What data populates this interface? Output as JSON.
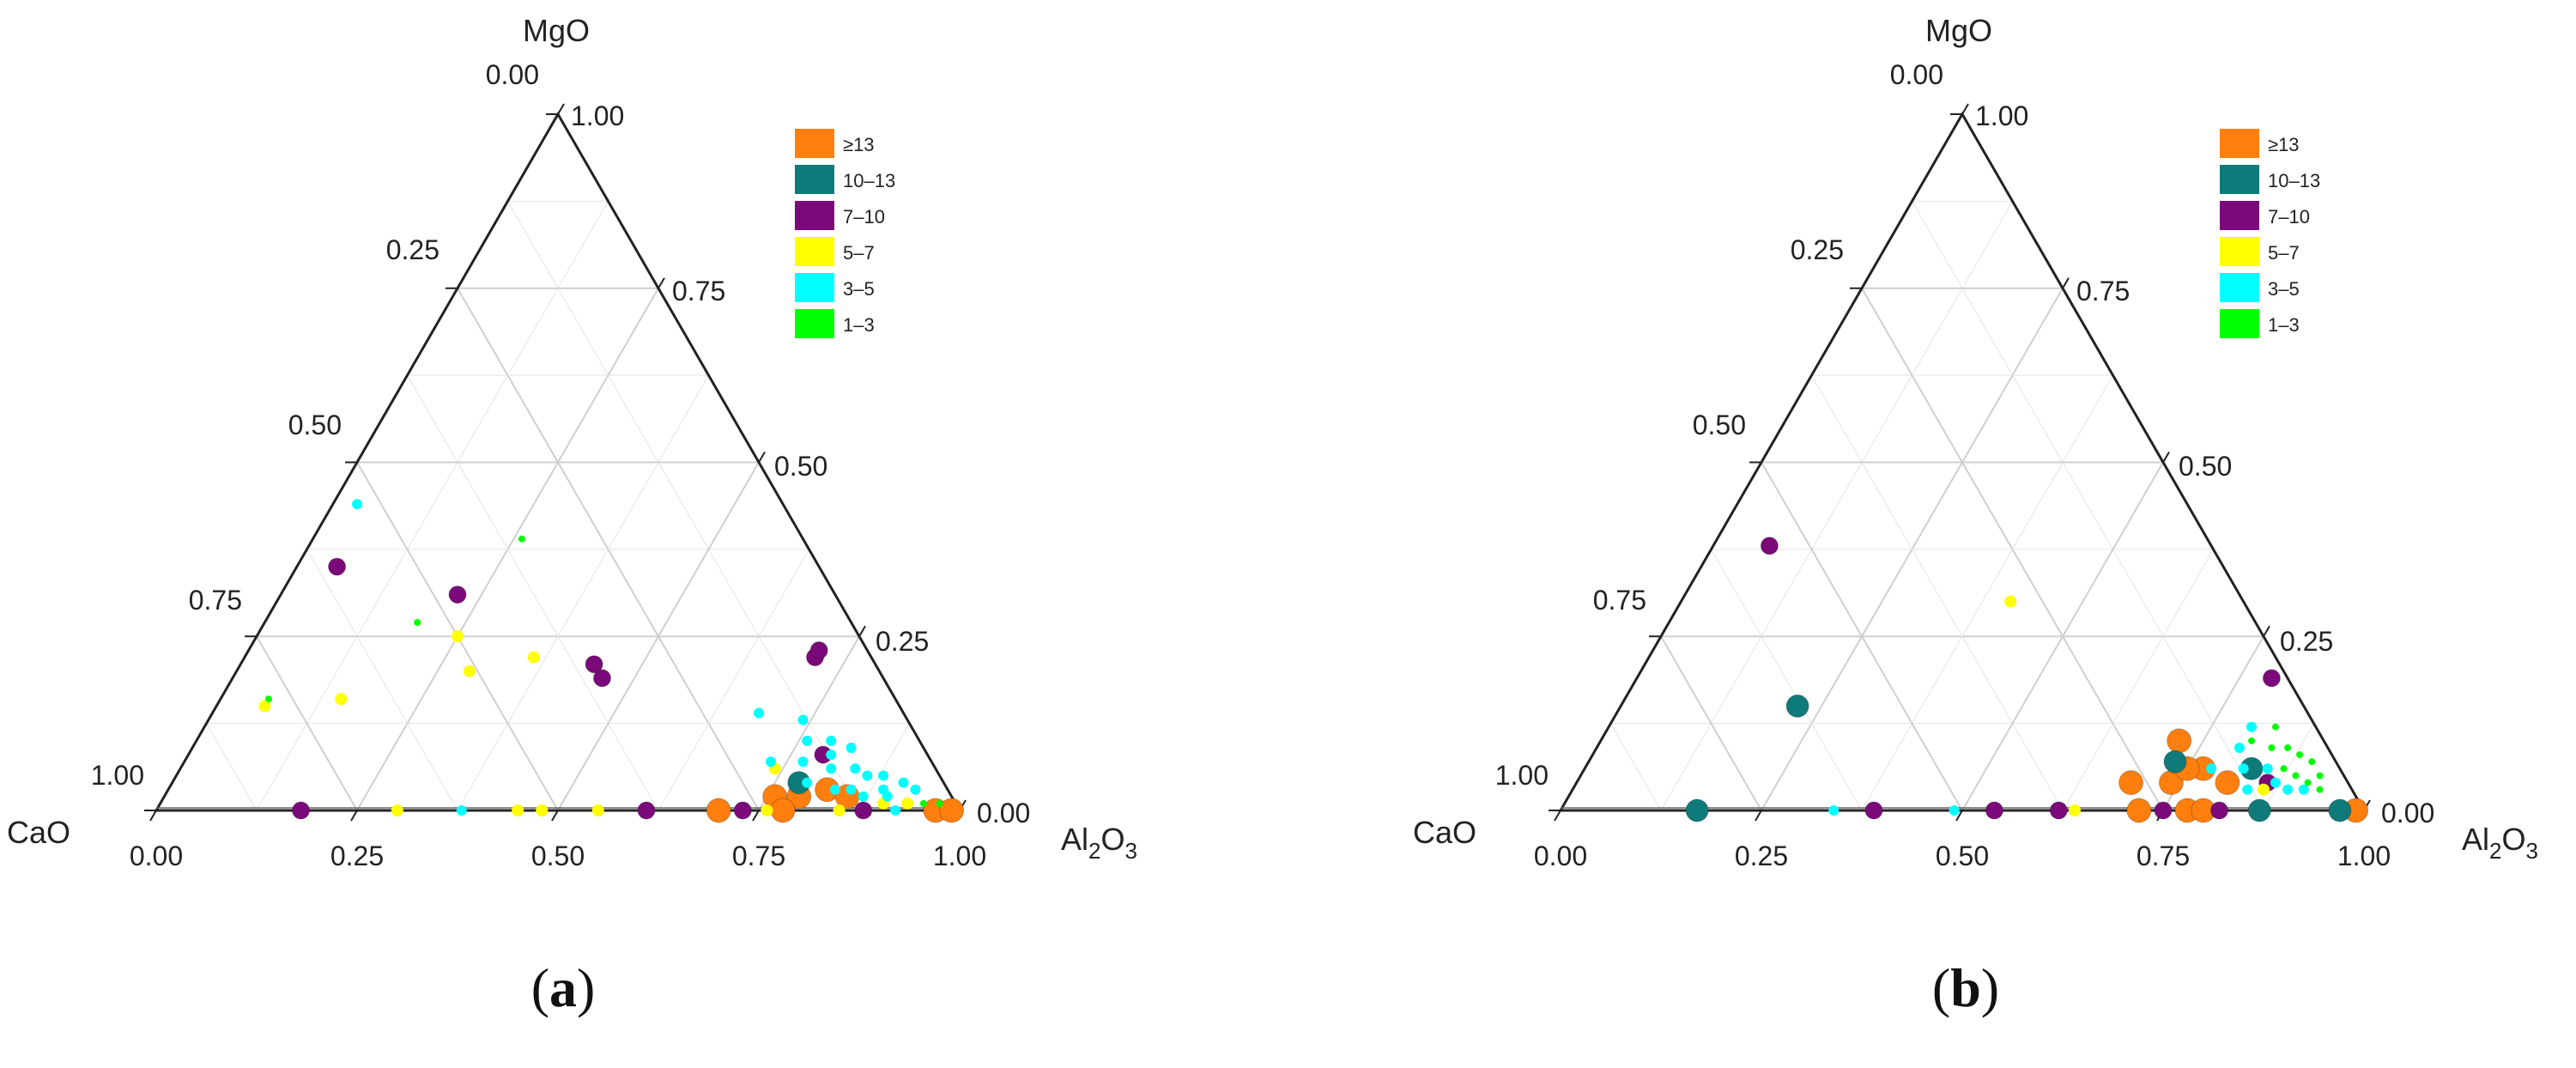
{
  "chart_data": [
    {
      "type": "scatter",
      "subtype": "ternary",
      "panel_label": "(a)",
      "panel_letter": "a",
      "axes": {
        "top": "MgO",
        "left": "CaO",
        "right_base": "Al",
        "right_sub1": "2",
        "right_mid": "O",
        "right_sub2": "3"
      },
      "ticks": [
        "0.00",
        "0.25",
        "0.50",
        "0.75",
        "1.00"
      ],
      "grid": true,
      "legend": {
        "placement": "top-right",
        "items": [
          {
            "label": "≥13",
            "color": "#ff7f0e"
          },
          {
            "label": "10–13",
            "color": "#0f7a7a"
          },
          {
            "label": "7–10",
            "color": "#7a0a7a"
          },
          {
            "label": "5–7",
            "color": "#ffff00"
          },
          {
            "label": "3–5",
            "color": "#00ffff"
          },
          {
            "label": "1–3",
            "color": "#00ff00"
          }
        ]
      },
      "points": [
        {
          "a": 0.03,
          "c": 0.53,
          "m": 0.44,
          "cls": "3–5"
        },
        {
          "a": 0.26,
          "c": 0.35,
          "m": 0.39,
          "cls": "1–3"
        },
        {
          "a": 0.05,
          "c": 0.6,
          "m": 0.35,
          "cls": "7–10"
        },
        {
          "a": 0.22,
          "c": 0.47,
          "m": 0.31,
          "cls": "7–10"
        },
        {
          "a": 0.19,
          "c": 0.54,
          "m": 0.27,
          "cls": "1–3"
        },
        {
          "a": 0.25,
          "c": 0.5,
          "m": 0.25,
          "cls": "5–7"
        },
        {
          "a": 0.36,
          "c": 0.42,
          "m": 0.22,
          "cls": "5–7"
        },
        {
          "a": 0.29,
          "c": 0.51,
          "m": 0.2,
          "cls": "5–7"
        },
        {
          "a": 0.44,
          "c": 0.35,
          "m": 0.21,
          "cls": "7–10"
        },
        {
          "a": 0.46,
          "c": 0.35,
          "m": 0.19,
          "cls": "7–10"
        },
        {
          "a": 0.06,
          "c": 0.78,
          "m": 0.16,
          "cls": "1–3"
        },
        {
          "a": 0.06,
          "c": 0.79,
          "m": 0.15,
          "cls": "5–7"
        },
        {
          "a": 0.15,
          "c": 0.69,
          "m": 0.16,
          "cls": "5–7"
        },
        {
          "a": 0.71,
          "c": 0.07,
          "m": 0.22,
          "cls": "7–10"
        },
        {
          "a": 0.71,
          "c": 0.06,
          "m": 0.23,
          "cls": "7–10"
        },
        {
          "a": 0.68,
          "c": 0.18,
          "m": 0.14,
          "cls": "3–5"
        },
        {
          "a": 0.74,
          "c": 0.13,
          "m": 0.13,
          "cls": "3–5"
        },
        {
          "a": 0.76,
          "c": 0.14,
          "m": 0.1,
          "cls": "3–5"
        },
        {
          "a": 0.79,
          "c": 0.11,
          "m": 0.1,
          "cls": "3–5"
        },
        {
          "a": 0.8,
          "c": 0.12,
          "m": 0.08,
          "cls": "3–5"
        },
        {
          "a": 0.82,
          "c": 0.09,
          "m": 0.09,
          "cls": "3–5"
        },
        {
          "a": 0.84,
          "c": 0.1,
          "m": 0.06,
          "cls": "3–5"
        },
        {
          "a": 0.86,
          "c": 0.09,
          "m": 0.05,
          "cls": "3–5"
        },
        {
          "a": 0.88,
          "c": 0.07,
          "m": 0.05,
          "cls": "3–5"
        },
        {
          "a": 0.89,
          "c": 0.08,
          "m": 0.03,
          "cls": "3–5"
        },
        {
          "a": 0.91,
          "c": 0.05,
          "m": 0.04,
          "cls": "3–5"
        },
        {
          "a": 0.93,
          "c": 0.04,
          "m": 0.03,
          "cls": "3–5"
        },
        {
          "a": 0.85,
          "c": 0.12,
          "m": 0.03,
          "cls": "3–5"
        },
        {
          "a": 0.83,
          "c": 0.14,
          "m": 0.03,
          "cls": "3–5"
        },
        {
          "a": 0.79,
          "c": 0.17,
          "m": 0.04,
          "cls": "3–5"
        },
        {
          "a": 0.87,
          "c": 0.11,
          "m": 0.02,
          "cls": "3–5"
        },
        {
          "a": 0.81,
          "c": 0.13,
          "m": 0.06,
          "cls": "3–5"
        },
        {
          "a": 0.77,
          "c": 0.16,
          "m": 0.07,
          "cls": "3–5"
        },
        {
          "a": 0.73,
          "c": 0.2,
          "m": 0.07,
          "cls": "3–5"
        },
        {
          "a": 0.9,
          "c": 0.08,
          "m": 0.02,
          "cls": "3–5"
        },
        {
          "a": 0.78,
          "c": 0.18,
          "m": 0.04,
          "cls": "10–13"
        },
        {
          "a": 0.79,
          "c": 0.13,
          "m": 0.08,
          "cls": "7–10"
        },
        {
          "a": 0.74,
          "c": 0.2,
          "m": 0.06,
          "cls": "5–7"
        },
        {
          "a": 0.82,
          "c": 0.15,
          "m": 0.03,
          "cls": "≥13"
        },
        {
          "a": 0.85,
          "c": 0.13,
          "m": 0.02,
          "cls": "≥13"
        },
        {
          "a": 0.79,
          "c": 0.19,
          "m": 0.02,
          "cls": "≥13"
        },
        {
          "a": 0.76,
          "c": 0.22,
          "m": 0.02,
          "cls": "≥13"
        },
        {
          "a": 0.9,
          "c": 0.09,
          "m": 0.01,
          "cls": "5–7"
        },
        {
          "a": 0.93,
          "c": 0.06,
          "m": 0.01,
          "cls": "5–7"
        },
        {
          "a": 0.95,
          "c": 0.04,
          "m": 0.01,
          "cls": "1–3"
        },
        {
          "a": 0.97,
          "c": 0.02,
          "m": 0.01,
          "cls": "1–3"
        },
        {
          "a": 0.18,
          "c": 0.82,
          "m": 0.0,
          "cls": "7–10"
        },
        {
          "a": 0.3,
          "c": 0.7,
          "m": 0.0,
          "cls": "5–7"
        },
        {
          "a": 0.38,
          "c": 0.62,
          "m": 0.0,
          "cls": "3–5"
        },
        {
          "a": 0.45,
          "c": 0.55,
          "m": 0.0,
          "cls": "5–7"
        },
        {
          "a": 0.48,
          "c": 0.52,
          "m": 0.0,
          "cls": "5–7"
        },
        {
          "a": 0.55,
          "c": 0.45,
          "m": 0.0,
          "cls": "5–7"
        },
        {
          "a": 0.61,
          "c": 0.39,
          "m": 0.0,
          "cls": "7–10"
        },
        {
          "a": 0.7,
          "c": 0.3,
          "m": 0.0,
          "cls": "≥13"
        },
        {
          "a": 0.73,
          "c": 0.27,
          "m": 0.0,
          "cls": "7–10"
        },
        {
          "a": 0.76,
          "c": 0.24,
          "m": 0.0,
          "cls": "5–7"
        },
        {
          "a": 0.78,
          "c": 0.22,
          "m": 0.0,
          "cls": "≥13"
        },
        {
          "a": 0.85,
          "c": 0.15,
          "m": 0.0,
          "cls": "5–7"
        },
        {
          "a": 0.88,
          "c": 0.12,
          "m": 0.0,
          "cls": "7–10"
        },
        {
          "a": 0.92,
          "c": 0.08,
          "m": 0.0,
          "cls": "3–5"
        },
        {
          "a": 0.97,
          "c": 0.03,
          "m": 0.0,
          "cls": "≥13"
        },
        {
          "a": 0.99,
          "c": 0.01,
          "m": 0.0,
          "cls": "≥13"
        }
      ]
    },
    {
      "type": "scatter",
      "subtype": "ternary",
      "panel_label": "(b)",
      "panel_letter": "b",
      "axes": {
        "top": "MgO",
        "left": "CaO",
        "right_base": "Al",
        "right_sub1": "2",
        "right_mid": "O",
        "right_sub2": "3"
      },
      "ticks": [
        "0.00",
        "0.25",
        "0.50",
        "0.75",
        "1.00"
      ],
      "grid": true,
      "legend": {
        "placement": "top-right",
        "items": [
          {
            "label": "≥13",
            "color": "#ff7f0e"
          },
          {
            "label": "10–13",
            "color": "#0f7a7a"
          },
          {
            "label": "7–10",
            "color": "#7a0a7a"
          },
          {
            "label": "5–7",
            "color": "#ffff00"
          },
          {
            "label": "3–5",
            "color": "#00ffff"
          },
          {
            "label": "1–3",
            "color": "#00ff00"
          }
        ]
      },
      "points": [
        {
          "a": 0.07,
          "c": 0.55,
          "m": 0.38,
          "cls": "7–10"
        },
        {
          "a": 0.41,
          "c": 0.29,
          "m": 0.3,
          "cls": "5–7"
        },
        {
          "a": 0.22,
          "c": 0.63,
          "m": 0.15,
          "cls": "10–13"
        },
        {
          "a": 0.79,
          "c": 0.02,
          "m": 0.19,
          "cls": "7–10"
        },
        {
          "a": 0.72,
          "c": 0.18,
          "m": 0.1,
          "cls": "≥13"
        },
        {
          "a": 0.73,
          "c": 0.2,
          "m": 0.07,
          "cls": "10–13"
        },
        {
          "a": 0.77,
          "c": 0.17,
          "m": 0.06,
          "cls": "≥13"
        },
        {
          "a": 0.69,
          "c": 0.27,
          "m": 0.04,
          "cls": "≥13"
        },
        {
          "a": 0.74,
          "c": 0.22,
          "m": 0.04,
          "cls": "≥13"
        },
        {
          "a": 0.81,
          "c": 0.15,
          "m": 0.04,
          "cls": "≥13"
        },
        {
          "a": 0.8,
          "c": 0.11,
          "m": 0.09,
          "cls": "3–5"
        },
        {
          "a": 0.82,
          "c": 0.12,
          "m": 0.06,
          "cls": "3–5"
        },
        {
          "a": 0.85,
          "c": 0.09,
          "m": 0.06,
          "cls": "3–5"
        },
        {
          "a": 0.87,
          "c": 0.09,
          "m": 0.04,
          "cls": "3–5"
        },
        {
          "a": 0.84,
          "c": 0.13,
          "m": 0.03,
          "cls": "3–5"
        },
        {
          "a": 0.78,
          "c": 0.16,
          "m": 0.06,
          "cls": "3–5"
        },
        {
          "a": 0.89,
          "c": 0.08,
          "m": 0.03,
          "cls": "3–5"
        },
        {
          "a": 0.91,
          "c": 0.06,
          "m": 0.03,
          "cls": "3–5"
        },
        {
          "a": 0.8,
          "c": 0.08,
          "m": 0.12,
          "cls": "3–5"
        },
        {
          "a": 0.83,
          "c": 0.05,
          "m": 0.12,
          "cls": "1–3"
        },
        {
          "a": 0.86,
          "c": 0.05,
          "m": 0.09,
          "cls": "1–3"
        },
        {
          "a": 0.88,
          "c": 0.04,
          "m": 0.08,
          "cls": "1–3"
        },
        {
          "a": 0.9,
          "c": 0.03,
          "m": 0.07,
          "cls": "1–3"
        },
        {
          "a": 0.84,
          "c": 0.07,
          "m": 0.09,
          "cls": "1–3"
        },
        {
          "a": 0.87,
          "c": 0.07,
          "m": 0.06,
          "cls": "1–3"
        },
        {
          "a": 0.92,
          "c": 0.03,
          "m": 0.05,
          "cls": "1–3"
        },
        {
          "a": 0.93,
          "c": 0.04,
          "m": 0.03,
          "cls": "1–3"
        },
        {
          "a": 0.81,
          "c": 0.09,
          "m": 0.1,
          "cls": "1–3"
        },
        {
          "a": 0.89,
          "c": 0.06,
          "m": 0.05,
          "cls": "1–3"
        },
        {
          "a": 0.91,
          "c": 0.05,
          "m": 0.04,
          "cls": "1–3"
        },
        {
          "a": 0.86,
          "c": 0.11,
          "m": 0.03,
          "cls": "5–7"
        },
        {
          "a": 0.83,
          "c": 0.11,
          "m": 0.06,
          "cls": "10–13"
        },
        {
          "a": 0.86,
          "c": 0.1,
          "m": 0.04,
          "cls": "7–10"
        },
        {
          "a": 0.75,
          "c": 0.19,
          "m": 0.06,
          "cls": "≥13"
        },
        {
          "a": 0.17,
          "c": 0.83,
          "m": 0.0,
          "cls": "10–13"
        },
        {
          "a": 0.34,
          "c": 0.66,
          "m": 0.0,
          "cls": "3–5"
        },
        {
          "a": 0.39,
          "c": 0.61,
          "m": 0.0,
          "cls": "7–10"
        },
        {
          "a": 0.49,
          "c": 0.51,
          "m": 0.0,
          "cls": "3–5"
        },
        {
          "a": 0.54,
          "c": 0.46,
          "m": 0.0,
          "cls": "7–10"
        },
        {
          "a": 0.62,
          "c": 0.38,
          "m": 0.0,
          "cls": "7–10"
        },
        {
          "a": 0.64,
          "c": 0.36,
          "m": 0.0,
          "cls": "5–7"
        },
        {
          "a": 0.72,
          "c": 0.28,
          "m": 0.0,
          "cls": "≥13"
        },
        {
          "a": 0.75,
          "c": 0.25,
          "m": 0.0,
          "cls": "7–10"
        },
        {
          "a": 0.78,
          "c": 0.22,
          "m": 0.0,
          "cls": "≥13"
        },
        {
          "a": 0.8,
          "c": 0.2,
          "m": 0.0,
          "cls": "≥13"
        },
        {
          "a": 0.82,
          "c": 0.18,
          "m": 0.0,
          "cls": "7–10"
        },
        {
          "a": 0.87,
          "c": 0.13,
          "m": 0.0,
          "cls": "10–13"
        },
        {
          "a": 0.97,
          "c": 0.03,
          "m": 0.0,
          "cls": "10–13"
        },
        {
          "a": 0.99,
          "c": 0.01,
          "m": 0.0,
          "cls": "≥13"
        }
      ]
    }
  ]
}
